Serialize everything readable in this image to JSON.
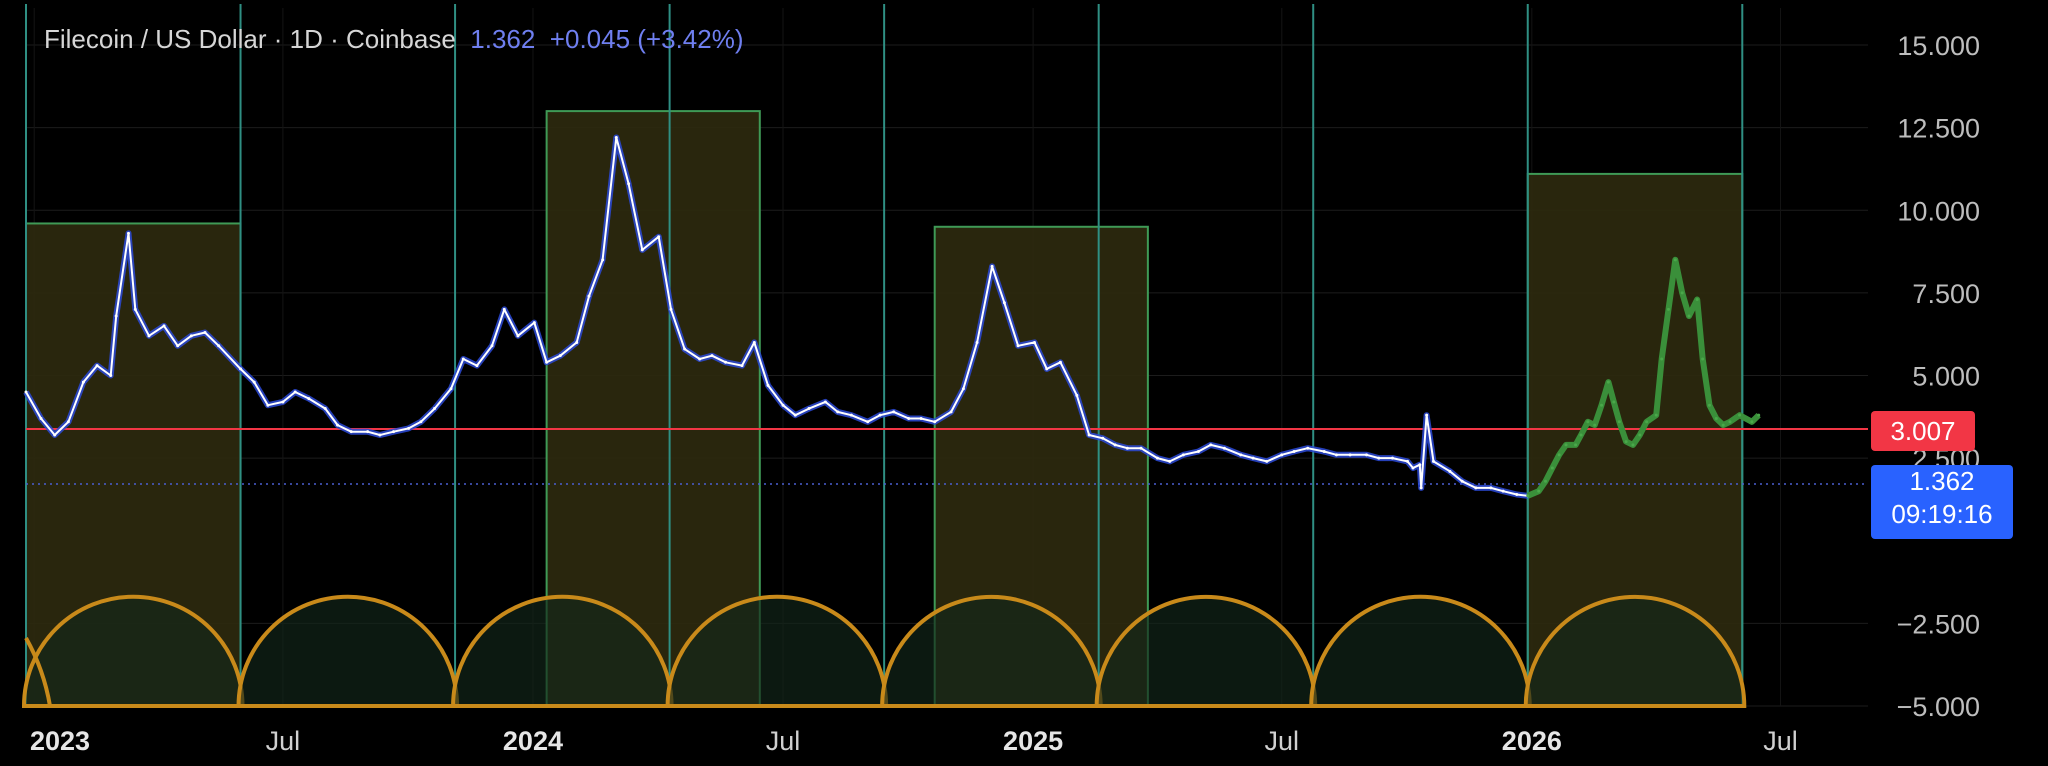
{
  "header": {
    "symbol": "Filecoin / US Dollar · 1D · Coinbase",
    "last_price": "1.362",
    "change": "+0.045 (+3.42%)"
  },
  "badges": {
    "level_price": "3.007",
    "current_price": "1.362",
    "countdown": "09:19:16"
  },
  "colors": {
    "background": "#000000",
    "price_line": "#ffffff",
    "price_shade": "#2c4ad8",
    "projection": "#3a8f3a",
    "box_fill": "#2e2a0e",
    "box_border": "#3f9a56",
    "arc": "#c98a1a",
    "level_line": "#f23645",
    "current_line": "#4a5fd0"
  },
  "chart_data": {
    "type": "line",
    "title": "Filecoin / US Dollar · 1D · Coinbase",
    "xlabel": "",
    "ylabel": "",
    "x_ticks": [
      "2023",
      "Jul",
      "2024",
      "Jul",
      "2025",
      "Jul",
      "2026",
      "Jul"
    ],
    "y_ticks": [
      15,
      12.5,
      10,
      7.5,
      5,
      2.5,
      -2.5,
      -5
    ],
    "y_tick_labels": [
      "15.000",
      "12.500",
      "10.000",
      "7.500",
      "5.000",
      "2.500",
      "−2.500",
      "−5.000"
    ],
    "ylim": [
      -5,
      15
    ],
    "xlim": [
      "2022-12-25",
      "2026-09-03"
    ],
    "grid": true,
    "horizontal_lines": [
      {
        "name": "level",
        "value": 3.007
      },
      {
        "name": "current price",
        "value": 1.362
      }
    ],
    "cycle_lines": [
      "2022-12-25",
      "2023-05-31",
      "2023-11-04",
      "2024-04-09",
      "2024-09-13",
      "2025-02-17",
      "2025-07-24",
      "2025-12-28",
      "2026-06-03"
    ],
    "highlight_boxes": [
      {
        "start": "2022-12-25",
        "end": "2023-05-31",
        "top": 9.6
      },
      {
        "start": "2024-01-10",
        "end": "2024-06-14",
        "top": 13.0
      },
      {
        "start": "2024-10-20",
        "end": "2025-03-25",
        "top": 9.5
      },
      {
        "start": "2025-12-28",
        "end": "2026-06-03",
        "top": 11.1
      }
    ],
    "series": [
      {
        "name": "",
        "style": "price",
        "x": [
          "2022-12-25",
          "2023-01-05",
          "2023-01-15",
          "2023-01-25",
          "2023-02-05",
          "2023-02-15",
          "2023-02-25",
          "2023-03-01",
          "2023-03-10",
          "2023-03-15",
          "2023-03-25",
          "2023-04-05",
          "2023-04-15",
          "2023-04-25",
          "2023-05-05",
          "2023-05-15",
          "2023-05-31",
          "2023-06-10",
          "2023-06-20",
          "2023-07-01",
          "2023-07-10",
          "2023-07-20",
          "2023-08-01",
          "2023-08-10",
          "2023-08-20",
          "2023-09-01",
          "2023-09-10",
          "2023-09-20",
          "2023-10-01",
          "2023-10-10",
          "2023-10-20",
          "2023-11-01",
          "2023-11-10",
          "2023-11-20",
          "2023-12-01",
          "2023-12-10",
          "2023-12-20",
          "2024-01-01",
          "2024-01-10",
          "2024-01-20",
          "2024-02-01",
          "2024-02-10",
          "2024-02-20",
          "2024-03-01",
          "2024-03-10",
          "2024-03-20",
          "2024-04-01",
          "2024-04-10",
          "2024-04-20",
          "2024-05-01",
          "2024-05-10",
          "2024-05-20",
          "2024-06-01",
          "2024-06-10",
          "2024-06-20",
          "2024-07-01",
          "2024-07-10",
          "2024-07-20",
          "2024-08-01",
          "2024-08-10",
          "2024-08-20",
          "2024-09-01",
          "2024-09-10",
          "2024-09-20",
          "2024-10-01",
          "2024-10-10",
          "2024-10-20",
          "2024-11-01",
          "2024-11-10",
          "2024-11-20",
          "2024-12-01",
          "2024-12-10",
          "2024-12-20",
          "2025-01-01",
          "2025-01-10",
          "2025-01-20",
          "2025-02-01",
          "2025-02-10",
          "2025-02-20",
          "2025-03-01",
          "2025-03-10",
          "2025-03-20",
          "2025-04-01",
          "2025-04-10",
          "2025-04-20",
          "2025-05-01",
          "2025-05-10",
          "2025-05-20",
          "2025-06-01",
          "2025-06-10",
          "2025-06-20",
          "2025-07-01",
          "2025-07-10",
          "2025-07-20",
          "2025-08-01",
          "2025-08-10",
          "2025-08-20",
          "2025-09-01",
          "2025-09-10",
          "2025-09-20",
          "2025-10-01",
          "2025-10-05",
          "2025-10-10",
          "2025-10-11",
          "2025-10-15",
          "2025-10-20",
          "2025-11-01",
          "2025-11-10",
          "2025-11-20",
          "2025-12-01",
          "2025-12-10",
          "2025-12-20",
          "2025-12-28"
        ],
        "values": [
          4.5,
          3.7,
          3.2,
          3.6,
          4.8,
          5.3,
          5.0,
          6.8,
          9.3,
          7.0,
          6.2,
          6.5,
          5.9,
          6.2,
          6.3,
          5.9,
          5.2,
          4.8,
          4.1,
          4.2,
          4.5,
          4.3,
          4.0,
          3.5,
          3.3,
          3.3,
          3.2,
          3.3,
          3.4,
          3.6,
          4.0,
          4.6,
          5.5,
          5.3,
          5.9,
          7.0,
          6.2,
          6.6,
          5.4,
          5.6,
          6.0,
          7.4,
          8.5,
          12.2,
          10.8,
          8.8,
          9.2,
          7.0,
          5.8,
          5.5,
          5.6,
          5.4,
          5.3,
          6.0,
          4.7,
          4.1,
          3.8,
          4.0,
          4.2,
          3.9,
          3.8,
          3.6,
          3.8,
          3.9,
          3.7,
          3.7,
          3.6,
          3.9,
          4.6,
          6.0,
          8.3,
          7.2,
          5.9,
          6.0,
          5.2,
          5.4,
          4.4,
          3.2,
          3.1,
          2.9,
          2.8,
          2.8,
          2.5,
          2.4,
          2.6,
          2.7,
          2.9,
          2.8,
          2.6,
          2.5,
          2.4,
          2.6,
          2.7,
          2.8,
          2.7,
          2.6,
          2.6,
          2.6,
          2.5,
          2.5,
          2.4,
          2.2,
          2.3,
          1.6,
          3.8,
          2.4,
          2.1,
          1.8,
          1.6,
          1.6,
          1.5,
          1.4,
          1.36
        ]
      },
      {
        "name": "",
        "style": "projection",
        "x": [
          "2025-12-28",
          "2026-01-05",
          "2026-01-10",
          "2026-01-15",
          "2026-01-20",
          "2026-01-25",
          "2026-02-01",
          "2026-02-05",
          "2026-02-10",
          "2026-02-15",
          "2026-02-20",
          "2026-02-25",
          "2026-03-01",
          "2026-03-05",
          "2026-03-10",
          "2026-03-15",
          "2026-03-20",
          "2026-03-25",
          "2026-04-01",
          "2026-04-05",
          "2026-04-10",
          "2026-04-15",
          "2026-04-20",
          "2026-04-25",
          "2026-05-01",
          "2026-05-05",
          "2026-05-10",
          "2026-05-15",
          "2026-05-20",
          "2026-05-25",
          "2026-06-01",
          "2026-06-10",
          "2026-06-15"
        ],
        "values": [
          1.36,
          1.5,
          1.8,
          2.2,
          2.6,
          2.9,
          2.9,
          3.2,
          3.6,
          3.5,
          4.1,
          4.8,
          4.2,
          3.6,
          3.0,
          2.9,
          3.2,
          3.6,
          3.8,
          5.5,
          7.0,
          8.5,
          7.5,
          6.8,
          7.3,
          5.5,
          4.1,
          3.7,
          3.5,
          3.6,
          3.8,
          3.6,
          3.8
        ]
      }
    ]
  }
}
